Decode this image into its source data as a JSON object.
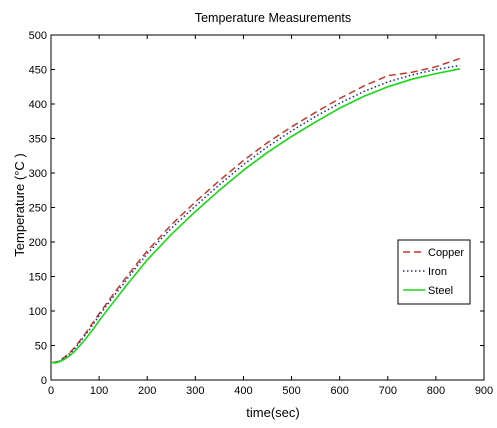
{
  "chart_data": {
    "type": "line",
    "title": "Temperature Measurements",
    "xlabel": "time(sec)",
    "ylabel": "Temperature (°C )",
    "xlim": [
      0,
      900
    ],
    "ylim": [
      0,
      500
    ],
    "xticks": [
      0,
      100,
      200,
      300,
      400,
      500,
      600,
      700,
      800,
      900
    ],
    "yticks": [
      0,
      50,
      100,
      150,
      200,
      250,
      300,
      350,
      400,
      450,
      500
    ],
    "grid": false,
    "legend_position": "right",
    "x": [
      0,
      10,
      20,
      30,
      40,
      50,
      60,
      70,
      80,
      90,
      100,
      120,
      140,
      160,
      180,
      200,
      250,
      300,
      350,
      400,
      450,
      500,
      550,
      600,
      650,
      700,
      750,
      800,
      850
    ],
    "series": [
      {
        "name": "Copper",
        "color": "#c0392b",
        "style": "dashed",
        "values": [
          25,
          26,
          29,
          34,
          40,
          48,
          57,
          66,
          76,
          86,
          96,
          115,
          134,
          152,
          170,
          187,
          225,
          258,
          289,
          318,
          344,
          367,
          388,
          408,
          426,
          441,
          446,
          454,
          466
        ]
      },
      {
        "name": "Iron",
        "color": "#1f2a8a",
        "style": "dotted",
        "values": [
          25,
          26,
          28,
          33,
          39,
          46,
          55,
          64,
          73,
          83,
          93,
          112,
          130,
          148,
          166,
          183,
          220,
          252,
          283,
          312,
          338,
          361,
          382,
          401,
          418,
          432,
          442,
          450,
          456
        ]
      },
      {
        "name": "Steel",
        "color": "#16d916",
        "style": "solid",
        "values": [
          25,
          25,
          27,
          31,
          36,
          42,
          50,
          58,
          67,
          76,
          86,
          104,
          122,
          140,
          157,
          174,
          211,
          244,
          275,
          304,
          330,
          353,
          374,
          394,
          411,
          425,
          436,
          444,
          451
        ]
      }
    ]
  }
}
